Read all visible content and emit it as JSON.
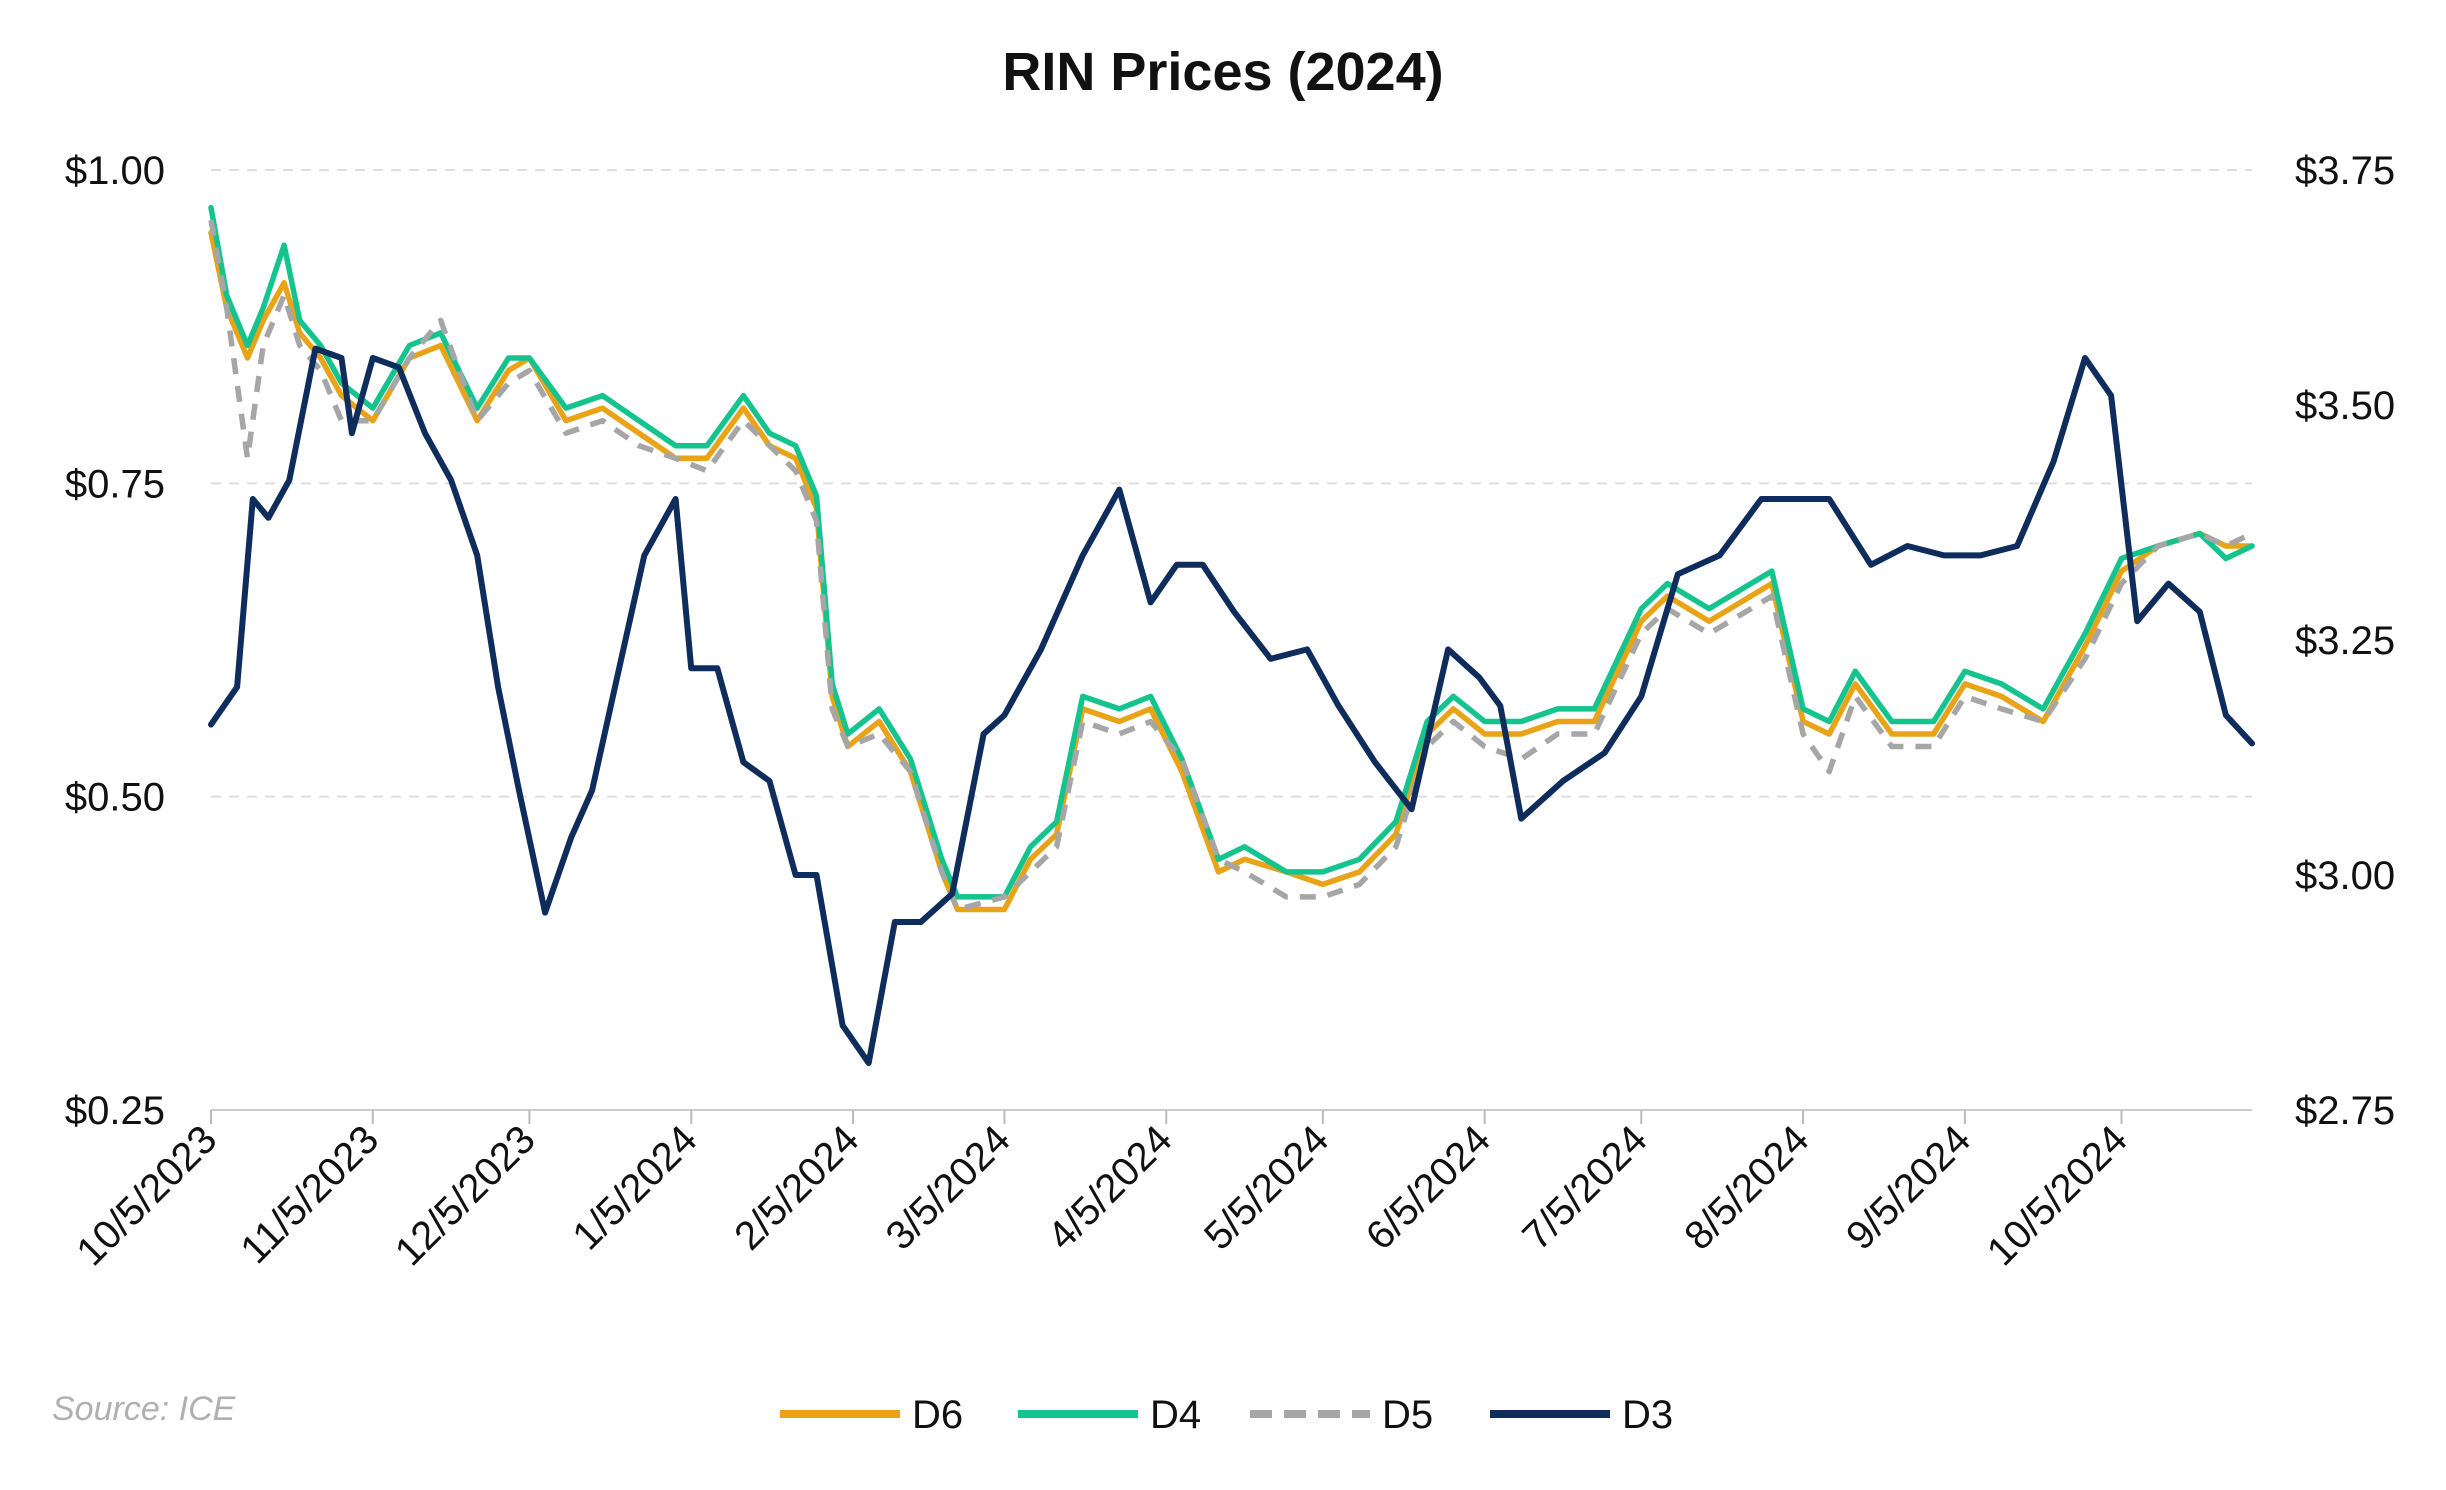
{
  "chart_data": {
    "type": "line",
    "title": "RIN Prices (2024)",
    "source": "Source: ICE",
    "x_ticks": [
      "10/5/2023",
      "11/5/2023",
      "12/5/2023",
      "1/5/2024",
      "2/5/2024",
      "3/5/2024",
      "4/5/2024",
      "5/5/2024",
      "6/5/2024",
      "7/5/2024",
      "8/5/2024",
      "9/5/2024",
      "10/5/2024"
    ],
    "x_range": [
      "2023-10-05",
      "2024-10-30"
    ],
    "y_left": {
      "ticks": [
        "$1.00",
        "$0.75",
        "$0.50",
        "$0.25"
      ],
      "ylim": [
        0.25,
        1.0
      ]
    },
    "y_right": {
      "ticks": [
        "$3.75",
        "$3.50",
        "$3.25",
        "$3.00",
        "$2.75"
      ],
      "ylim": [
        2.75,
        3.75
      ]
    },
    "grid": "horizontal dashed",
    "legend_position": "bottom",
    "colors": {
      "D6": "#E8A317",
      "D4": "#14C38E",
      "D5": "#A6A6A6",
      "D3": "#0F2D5C"
    },
    "series": [
      {
        "name": "D6",
        "axis": "left",
        "style": "solid",
        "x": [
          "2023-10-05",
          "2023-10-08",
          "2023-10-12",
          "2023-10-15",
          "2023-10-19",
          "2023-10-22",
          "2023-10-26",
          "2023-10-30",
          "2023-11-05",
          "2023-11-12",
          "2023-11-18",
          "2023-11-25",
          "2023-12-01",
          "2023-12-05",
          "2023-12-12",
          "2023-12-19",
          "2023-12-26",
          "2024-01-02",
          "2024-01-08",
          "2024-01-15",
          "2024-01-20",
          "2024-01-25",
          "2024-01-29",
          "2024-02-01",
          "2024-02-04",
          "2024-02-10",
          "2024-02-16",
          "2024-02-22",
          "2024-02-25",
          "2024-03-05",
          "2024-03-10",
          "2024-03-15",
          "2024-03-20",
          "2024-03-27",
          "2024-04-02",
          "2024-04-08",
          "2024-04-15",
          "2024-04-20",
          "2024-04-28",
          "2024-05-05",
          "2024-05-12",
          "2024-05-19",
          "2024-05-25",
          "2024-05-30",
          "2024-06-05",
          "2024-06-12",
          "2024-06-19",
          "2024-06-26",
          "2024-07-05",
          "2024-07-10",
          "2024-07-18",
          "2024-07-26",
          "2024-07-30",
          "2024-08-05",
          "2024-08-10",
          "2024-08-15",
          "2024-08-22",
          "2024-08-30",
          "2024-09-05",
          "2024-09-12",
          "2024-09-20",
          "2024-09-28",
          "2024-10-05",
          "2024-10-12",
          "2024-10-20",
          "2024-10-25",
          "2024-10-30"
        ],
        "y": [
          0.95,
          0.89,
          0.85,
          0.88,
          0.91,
          0.87,
          0.85,
          0.82,
          0.8,
          0.85,
          0.86,
          0.8,
          0.84,
          0.85,
          0.8,
          0.81,
          0.79,
          0.77,
          0.77,
          0.81,
          0.78,
          0.77,
          0.73,
          0.58,
          0.54,
          0.56,
          0.52,
          0.44,
          0.41,
          0.41,
          0.45,
          0.47,
          0.57,
          0.56,
          0.57,
          0.52,
          0.44,
          0.45,
          0.44,
          0.43,
          0.44,
          0.47,
          0.55,
          0.57,
          0.55,
          0.55,
          0.56,
          0.56,
          0.64,
          0.66,
          0.64,
          0.66,
          0.67,
          0.56,
          0.55,
          0.59,
          0.55,
          0.55,
          0.59,
          0.58,
          0.56,
          0.62,
          0.68,
          0.7,
          0.71,
          0.7,
          0.7
        ]
      },
      {
        "name": "D4",
        "axis": "left",
        "style": "solid",
        "x": [
          "2023-10-05",
          "2023-10-08",
          "2023-10-12",
          "2023-10-15",
          "2023-10-19",
          "2023-10-22",
          "2023-10-26",
          "2023-10-30",
          "2023-11-05",
          "2023-11-12",
          "2023-11-18",
          "2023-11-25",
          "2023-12-01",
          "2023-12-05",
          "2023-12-12",
          "2023-12-19",
          "2023-12-26",
          "2024-01-02",
          "2024-01-08",
          "2024-01-15",
          "2024-01-20",
          "2024-01-25",
          "2024-01-29",
          "2024-02-01",
          "2024-02-04",
          "2024-02-10",
          "2024-02-16",
          "2024-02-22",
          "2024-02-25",
          "2024-03-05",
          "2024-03-10",
          "2024-03-15",
          "2024-03-20",
          "2024-03-27",
          "2024-04-02",
          "2024-04-08",
          "2024-04-15",
          "2024-04-20",
          "2024-04-28",
          "2024-05-05",
          "2024-05-12",
          "2024-05-19",
          "2024-05-25",
          "2024-05-30",
          "2024-06-05",
          "2024-06-12",
          "2024-06-19",
          "2024-06-26",
          "2024-07-05",
          "2024-07-10",
          "2024-07-18",
          "2024-07-26",
          "2024-07-30",
          "2024-08-05",
          "2024-08-10",
          "2024-08-15",
          "2024-08-22",
          "2024-08-30",
          "2024-09-05",
          "2024-09-12",
          "2024-09-20",
          "2024-09-28",
          "2024-10-05",
          "2024-10-12",
          "2024-10-20",
          "2024-10-25",
          "2024-10-30"
        ],
        "y": [
          0.97,
          0.9,
          0.86,
          0.89,
          0.94,
          0.88,
          0.86,
          0.83,
          0.81,
          0.86,
          0.87,
          0.81,
          0.85,
          0.85,
          0.81,
          0.82,
          0.8,
          0.78,
          0.78,
          0.82,
          0.79,
          0.78,
          0.74,
          0.59,
          0.55,
          0.57,
          0.53,
          0.45,
          0.42,
          0.42,
          0.46,
          0.48,
          0.58,
          0.57,
          0.58,
          0.53,
          0.45,
          0.46,
          0.44,
          0.44,
          0.45,
          0.48,
          0.56,
          0.58,
          0.56,
          0.56,
          0.57,
          0.57,
          0.65,
          0.67,
          0.65,
          0.67,
          0.68,
          0.57,
          0.56,
          0.6,
          0.56,
          0.56,
          0.6,
          0.59,
          0.57,
          0.63,
          0.69,
          0.7,
          0.71,
          0.69,
          0.7
        ]
      },
      {
        "name": "D5",
        "axis": "left",
        "style": "dashed",
        "x": [
          "2023-10-05",
          "2023-10-08",
          "2023-10-12",
          "2023-10-15",
          "2023-10-19",
          "2023-10-22",
          "2023-10-26",
          "2023-10-30",
          "2023-11-05",
          "2023-11-12",
          "2023-11-18",
          "2023-11-25",
          "2023-12-01",
          "2023-12-05",
          "2023-12-12",
          "2023-12-19",
          "2023-12-26",
          "2024-01-02",
          "2024-01-08",
          "2024-01-15",
          "2024-01-20",
          "2024-01-25",
          "2024-01-29",
          "2024-02-01",
          "2024-02-04",
          "2024-02-10",
          "2024-02-16",
          "2024-02-22",
          "2024-02-25",
          "2024-03-05",
          "2024-03-10",
          "2024-03-15",
          "2024-03-20",
          "2024-03-27",
          "2024-04-02",
          "2024-04-08",
          "2024-04-15",
          "2024-04-20",
          "2024-04-28",
          "2024-05-05",
          "2024-05-12",
          "2024-05-19",
          "2024-05-25",
          "2024-05-30",
          "2024-06-05",
          "2024-06-12",
          "2024-06-19",
          "2024-06-26",
          "2024-07-05",
          "2024-07-10",
          "2024-07-18",
          "2024-07-26",
          "2024-07-30",
          "2024-08-05",
          "2024-08-10",
          "2024-08-15",
          "2024-08-22",
          "2024-08-30",
          "2024-09-05",
          "2024-09-12",
          "2024-09-20",
          "2024-09-28",
          "2024-10-05",
          "2024-10-12",
          "2024-10-20",
          "2024-10-25",
          "2024-10-30"
        ],
        "y": [
          0.96,
          0.89,
          0.77,
          0.86,
          0.9,
          0.86,
          0.84,
          0.8,
          0.8,
          0.85,
          0.88,
          0.8,
          0.83,
          0.84,
          0.79,
          0.8,
          0.78,
          0.77,
          0.76,
          0.8,
          0.78,
          0.76,
          0.72,
          0.57,
          0.54,
          0.55,
          0.52,
          0.44,
          0.41,
          0.42,
          0.44,
          0.46,
          0.56,
          0.55,
          0.56,
          0.53,
          0.45,
          0.44,
          0.42,
          0.42,
          0.43,
          0.46,
          0.54,
          0.56,
          0.54,
          0.53,
          0.55,
          0.55,
          0.63,
          0.65,
          0.63,
          0.65,
          0.66,
          0.55,
          0.52,
          0.58,
          0.54,
          0.54,
          0.58,
          0.57,
          0.56,
          0.61,
          0.67,
          0.7,
          0.71,
          0.7,
          0.71
        ]
      },
      {
        "name": "D3",
        "axis": "right",
        "style": "solid",
        "x": [
          "2023-10-05",
          "2023-10-10",
          "2023-10-13",
          "2023-10-16",
          "2023-10-20",
          "2023-10-25",
          "2023-10-30",
          "2023-11-01",
          "2023-11-05",
          "2023-11-10",
          "2023-11-15",
          "2023-11-20",
          "2023-11-25",
          "2023-11-29",
          "2023-12-03",
          "2023-12-08",
          "2023-12-13",
          "2023-12-17",
          "2023-12-21",
          "2023-12-27",
          "2024-01-02",
          "2024-01-05",
          "2024-01-10",
          "2024-01-15",
          "2024-01-20",
          "2024-01-25",
          "2024-01-29",
          "2024-02-03",
          "2024-02-08",
          "2024-02-13",
          "2024-02-18",
          "2024-02-24",
          "2024-03-01",
          "2024-03-05",
          "2024-03-12",
          "2024-03-20",
          "2024-03-27",
          "2024-04-02",
          "2024-04-07",
          "2024-04-12",
          "2024-04-18",
          "2024-04-25",
          "2024-05-02",
          "2024-05-08",
          "2024-05-15",
          "2024-05-22",
          "2024-05-29",
          "2024-06-04",
          "2024-06-08",
          "2024-06-12",
          "2024-06-20",
          "2024-06-28",
          "2024-07-05",
          "2024-07-12",
          "2024-07-20",
          "2024-07-28",
          "2024-08-03",
          "2024-08-10",
          "2024-08-18",
          "2024-08-25",
          "2024-09-01",
          "2024-09-08",
          "2024-09-15",
          "2024-09-22",
          "2024-09-28",
          "2024-10-03",
          "2024-10-08",
          "2024-10-14",
          "2024-10-20",
          "2024-10-25",
          "2024-10-30"
        ],
        "y": [
          3.16,
          3.2,
          3.4,
          3.38,
          3.42,
          3.56,
          3.55,
          3.47,
          3.55,
          3.54,
          3.47,
          3.42,
          3.34,
          3.2,
          3.09,
          2.96,
          3.04,
          3.09,
          3.19,
          3.34,
          3.4,
          3.22,
          3.22,
          3.12,
          3.1,
          3.0,
          3.0,
          2.84,
          2.8,
          2.95,
          2.95,
          2.98,
          3.15,
          3.17,
          3.24,
          3.34,
          3.41,
          3.29,
          3.33,
          3.33,
          3.28,
          3.23,
          3.24,
          3.18,
          3.12,
          3.07,
          3.24,
          3.21,
          3.18,
          3.06,
          3.1,
          3.13,
          3.19,
          3.32,
          3.34,
          3.4,
          3.4,
          3.4,
          3.33,
          3.35,
          3.34,
          3.34,
          3.35,
          3.44,
          3.55,
          3.51,
          3.27,
          3.31,
          3.28,
          3.17,
          3.14
        ]
      }
    ]
  }
}
